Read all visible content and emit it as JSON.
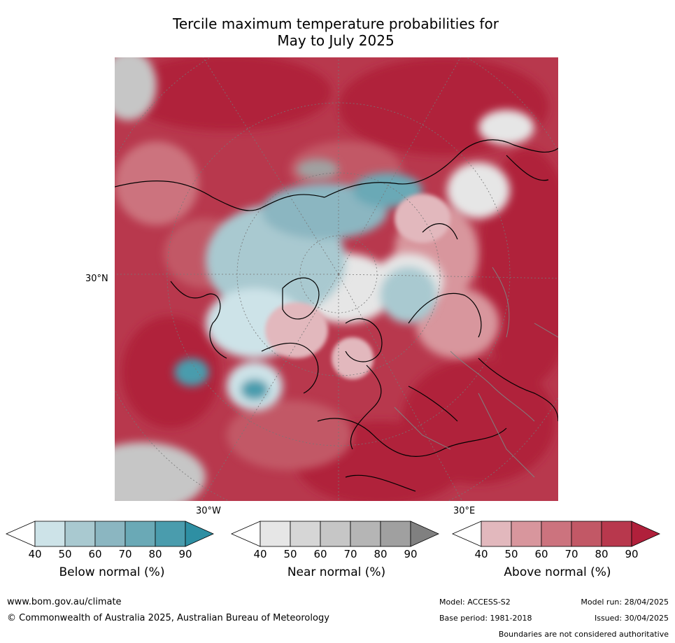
{
  "title_line1": "Tercile maximum temperature probabilities for",
  "title_line2": "May to July 2025",
  "map_labels": {
    "lat_30n": "30°N",
    "lon_30w": "30°W",
    "lon_30e": "30°E"
  },
  "colorbars": [
    {
      "id": "below",
      "label": "Below normal (%)",
      "ticks": [
        "40",
        "50",
        "60",
        "70",
        "80",
        "90"
      ],
      "colors": [
        "#ffffff",
        "#cde3e8",
        "#a9c9d0",
        "#8bb6c1",
        "#6aa9b6",
        "#4a9cad",
        "#2e8fa3"
      ]
    },
    {
      "id": "near",
      "label": "Near normal (%)",
      "ticks": [
        "40",
        "50",
        "60",
        "70",
        "80",
        "90"
      ],
      "colors": [
        "#ffffff",
        "#e6e6e6",
        "#d6d6d6",
        "#c6c6c6",
        "#b5b5b5",
        "#a0a0a0",
        "#808080"
      ]
    },
    {
      "id": "above",
      "label": "Above normal (%)",
      "ticks": [
        "40",
        "50",
        "60",
        "70",
        "80",
        "90"
      ],
      "colors": [
        "#ffffff",
        "#e2b8bd",
        "#d8969d",
        "#cc737e",
        "#c25866",
        "#b8384d",
        "#b0203b"
      ]
    }
  ],
  "footer": {
    "website": "www.bom.gov.au/climate",
    "copyright": "© Commonwealth of Australia 2025, Australian Bureau of Meteorology",
    "model": "Model: ACCESS-S2",
    "base_period": "Base period: 1981-2018",
    "model_run": "Model run: 28/04/2025",
    "issued": "Issued: 30/04/2025",
    "disclaimer": "Boundaries are not considered authoritative"
  }
}
